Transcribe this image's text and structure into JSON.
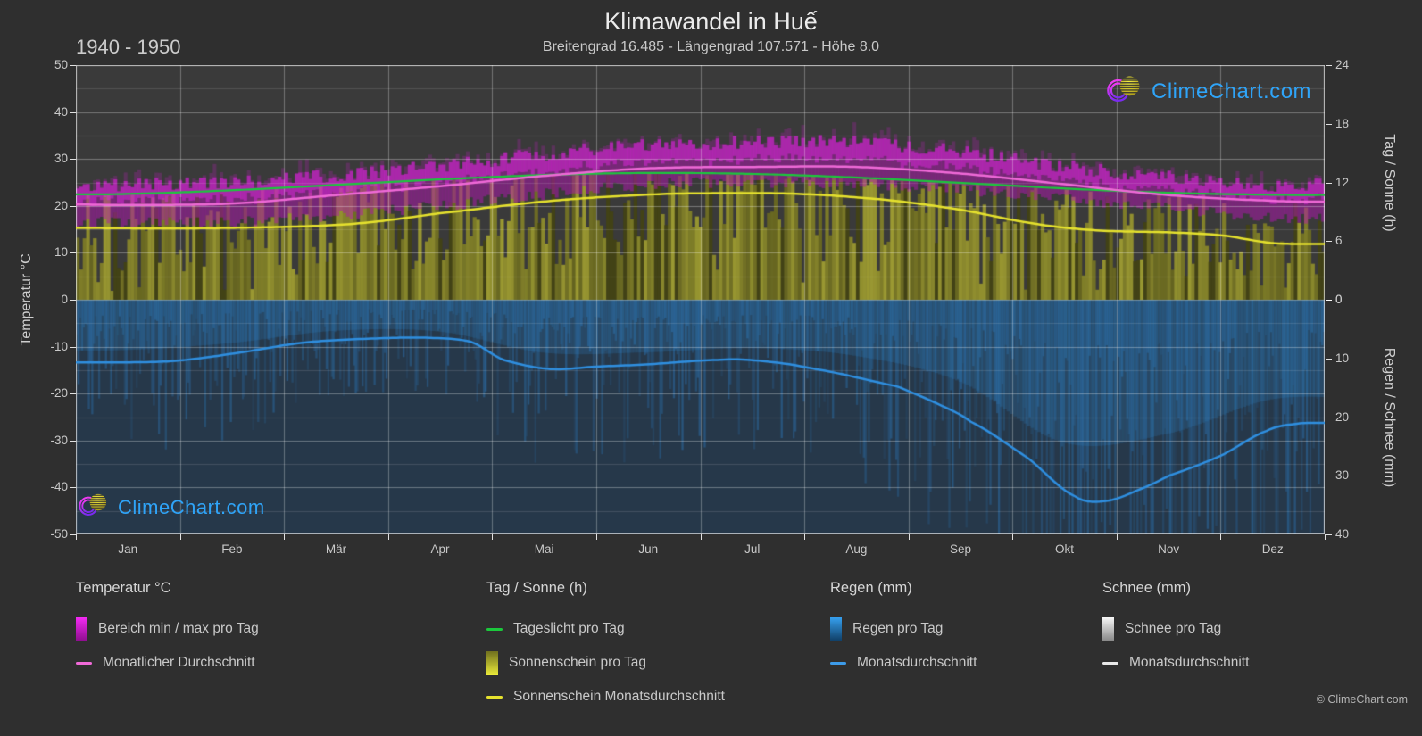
{
  "header": {
    "title": "Klimawandel in Huế",
    "subtitle": "Breitengrad 16.485 - Längengrad 107.571 - Höhe 8.0",
    "period": "1940 - 1950"
  },
  "watermark": {
    "text": "ClimeChart.com"
  },
  "footer": {
    "copyright": "© ClimeChart.com"
  },
  "axes": {
    "left_label": "Temperatur °C",
    "left_ticks": [
      50,
      40,
      30,
      20,
      10,
      0,
      -10,
      -20,
      -30,
      -40,
      -50
    ],
    "right_top_label": "Tag / Sonne (h)",
    "right_top_ticks": [
      24,
      18,
      12,
      6,
      0
    ],
    "right_bottom_label": "Regen / Schnee (mm)",
    "right_bottom_ticks": [
      0,
      10,
      20,
      30,
      40
    ],
    "months": [
      "Jan",
      "Feb",
      "Mär",
      "Apr",
      "Mai",
      "Jun",
      "Jul",
      "Aug",
      "Sep",
      "Okt",
      "Nov",
      "Dez"
    ]
  },
  "legend": {
    "columns": [
      {
        "header": "Temperatur °C",
        "items": [
          {
            "swatch": "grad",
            "gradient": "g-magenta",
            "label": "Bereich min / max pro Tag"
          },
          {
            "swatch": "line",
            "color": "#f06ad8",
            "label": "Monatlicher Durchschnitt"
          }
        ]
      },
      {
        "header": "Tag / Sonne (h)",
        "items": [
          {
            "swatch": "line",
            "color": "#1bc83c",
            "label": "Tageslicht pro Tag"
          },
          {
            "swatch": "grad",
            "gradient": "g-yellow",
            "label": "Sonnenschein pro Tag"
          },
          {
            "swatch": "line",
            "color": "#e6e22e",
            "label": "Sonnenschein Monatsdurchschnitt"
          }
        ]
      },
      {
        "header": "Regen (mm)",
        "items": [
          {
            "swatch": "grad",
            "gradient": "g-blue",
            "label": "Regen pro Tag"
          },
          {
            "swatch": "line",
            "color": "#3d9be9",
            "label": "Monatsdurchschnitt"
          }
        ]
      },
      {
        "header": "Schnee (mm)",
        "items": [
          {
            "swatch": "grad",
            "gradient": "g-snow",
            "label": "Schnee pro Tag"
          },
          {
            "swatch": "line",
            "color": "#e8e8e8",
            "label": "Monatsdurchschnitt"
          }
        ]
      }
    ]
  },
  "colors": {
    "background": "#2f2f2f",
    "plot_background": "#3a3a3a",
    "temp_band": "#c520c5",
    "temp_avg_line": "#f06ad8",
    "daylight_line": "#1bc83c",
    "sunshine_fill": "#8b8b2b",
    "sunshine_line": "#e6e22e",
    "rain_fill": "#2a7ab5",
    "rain_line": "#2f8fe0",
    "snow_line": "#e8e8e8",
    "logo_text": "#2fa4f8",
    "grid": "#ffffff"
  },
  "chart_data": {
    "type": "climate-composite",
    "title": "Klimawandel in Huế",
    "months": [
      "Jan",
      "Feb",
      "Mär",
      "Apr",
      "Mai",
      "Jun",
      "Jul",
      "Aug",
      "Sep",
      "Okt",
      "Nov",
      "Dez"
    ],
    "axis_ranges": {
      "temperature_c": [
        -50,
        50
      ],
      "sun_h": [
        0,
        24
      ],
      "precip_mm": [
        0,
        40
      ]
    },
    "temperature_c": {
      "daily_range_min_monthly": [
        16.5,
        16.5,
        18,
        20,
        22.5,
        24.5,
        25,
        24.5,
        23.5,
        21.5,
        19.5,
        17.5
      ],
      "daily_range_max_monthly": [
        24.5,
        25,
        26.5,
        28.5,
        31,
        33,
        33.5,
        33.5,
        31.5,
        28.5,
        26,
        24.5
      ],
      "monthly_avg": [
        20.2,
        20.5,
        22.3,
        24.2,
        26.4,
        28.0,
        28.3,
        28.2,
        26.9,
        24.6,
        22.3,
        21.0
      ]
    },
    "daylight_h_monthly": [
      10.8,
      11.2,
      11.8,
      12.3,
      12.8,
      13.0,
      12.9,
      12.5,
      12.0,
      11.4,
      10.9,
      10.7
    ],
    "sunshine_h_monthly": [
      7.3,
      7.4,
      7.8,
      8.9,
      10.1,
      10.8,
      10.9,
      10.3,
      9.2,
      7.4,
      6.8,
      5.7
    ],
    "rain_mm_per_day_monthly": [
      10.7,
      9.2,
      6.6,
      6.8,
      11.3,
      11.2,
      10.3,
      12.0,
      17.5,
      30.5,
      28.5,
      21.2
    ],
    "snow_mm_per_day_monthly": [
      0,
      0,
      0,
      0,
      0,
      0,
      0,
      0,
      0,
      0,
      0,
      0
    ],
    "line_control_points": {
      "temp_avg_c": [
        [
          0,
          20.3
        ],
        [
          0.5,
          20.2
        ],
        [
          1.5,
          20.5
        ],
        [
          2.5,
          22.3
        ],
        [
          3.5,
          24.2
        ],
        [
          4.5,
          26.4
        ],
        [
          5.5,
          28.0
        ],
        [
          6.5,
          28.3
        ],
        [
          7.5,
          28.3
        ],
        [
          8.5,
          26.9
        ],
        [
          9.5,
          24.6
        ],
        [
          10.5,
          22.3
        ],
        [
          11.5,
          21.1
        ],
        [
          12,
          20.9
        ]
      ],
      "daylight_h": [
        [
          0,
          10.78
        ],
        [
          0.5,
          10.83
        ],
        [
          1.5,
          11.2
        ],
        [
          2.5,
          11.75
        ],
        [
          3.5,
          12.31
        ],
        [
          4.5,
          12.76
        ],
        [
          5.5,
          12.97
        ],
        [
          6.5,
          12.87
        ],
        [
          7.5,
          12.5
        ],
        [
          8.5,
          11.96
        ],
        [
          9.5,
          11.38
        ],
        [
          10.5,
          10.94
        ],
        [
          11.5,
          10.74
        ],
        [
          12,
          10.72
        ]
      ],
      "sunshine_h": [
        [
          0,
          7.35
        ],
        [
          1,
          7.3
        ],
        [
          2,
          7.45
        ],
        [
          2.7,
          7.8
        ],
        [
          3.5,
          8.85
        ],
        [
          4.5,
          10.05
        ],
        [
          5.5,
          10.75
        ],
        [
          6.3,
          10.9
        ],
        [
          7,
          10.8
        ],
        [
          7.8,
          10.2
        ],
        [
          8.5,
          9.2
        ],
        [
          9.2,
          7.8
        ],
        [
          9.8,
          7.1
        ],
        [
          10.5,
          6.9
        ],
        [
          11,
          6.6
        ],
        [
          11.5,
          5.8
        ],
        [
          12,
          5.7
        ]
      ],
      "rain_mm": [
        [
          0,
          10.7
        ],
        [
          0.9,
          10.5
        ],
        [
          1.5,
          9.2
        ],
        [
          2.2,
          7.3
        ],
        [
          2.9,
          6.6
        ],
        [
          3.4,
          6.5
        ],
        [
          3.8,
          7.2
        ],
        [
          4.1,
          10.2
        ],
        [
          4.55,
          11.8
        ],
        [
          5,
          11.4
        ],
        [
          5.5,
          11.0
        ],
        [
          6.1,
          10.3
        ],
        [
          6.5,
          10.3
        ],
        [
          7.1,
          11.8
        ],
        [
          7.9,
          14.8
        ],
        [
          8.25,
          17.5
        ],
        [
          8.6,
          20.8
        ],
        [
          9.15,
          27.0
        ],
        [
          9.6,
          33.5
        ],
        [
          9.9,
          34.3
        ],
        [
          10.2,
          32.5
        ],
        [
          10.5,
          30.0
        ],
        [
          11,
          26.6
        ],
        [
          11.45,
          22.3
        ],
        [
          11.75,
          21.1
        ],
        [
          12,
          21.0
        ]
      ]
    }
  }
}
